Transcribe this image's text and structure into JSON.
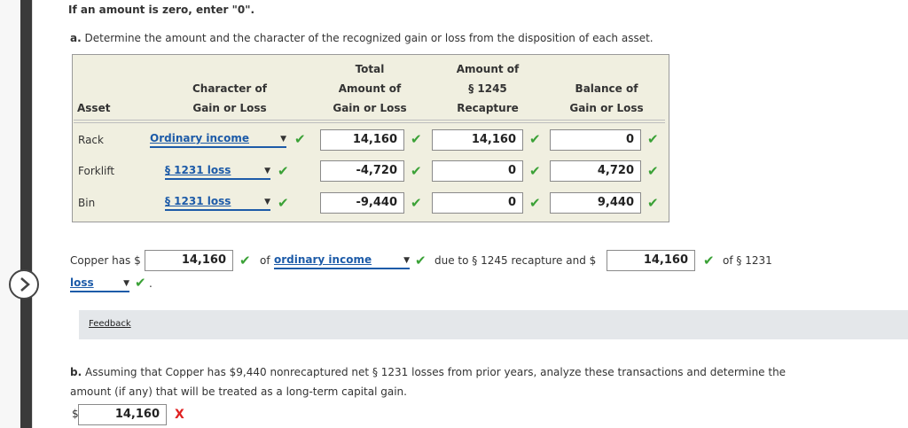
{
  "instruction": "If an amount is zero, enter \"0\".",
  "part_a": {
    "prefix": "a.",
    "text": "Determine the amount and the character of the recognized gain or loss from the disposition of each asset."
  },
  "table": {
    "headers": {
      "asset": "Asset",
      "character_l1": "Character of",
      "character_l2": "Gain or Loss",
      "total_l1": "Total",
      "total_l2": "Amount of",
      "total_l3": "Gain or Loss",
      "recapture_l1": "Amount of",
      "recapture_l2": "§ 1245",
      "recapture_l3": "Recapture",
      "balance_l1": "Balance of",
      "balance_l2": "Gain or Loss"
    },
    "rows": [
      {
        "asset": "Rack",
        "character": "Ordinary income",
        "total": "14,160",
        "recapture": "14,160",
        "balance": "0"
      },
      {
        "asset": "Forklift",
        "character": "§ 1231 loss",
        "total": "-4,720",
        "recapture": "0",
        "balance": "4,720"
      },
      {
        "asset": "Bin",
        "character": "§ 1231 loss",
        "total": "-9,440",
        "recapture": "0",
        "balance": "9,440"
      }
    ]
  },
  "summary": {
    "prefix": "Copper has $",
    "amount1": "14,160",
    "of_text": "of",
    "character_select": "ordinary income",
    "due_text": "due to § 1245 recapture and $",
    "amount2": "14,160",
    "of_1231": "of § 1231",
    "loss_select": "loss",
    "period": "."
  },
  "feedback_label": "Feedback",
  "part_b": {
    "prefix": "b.",
    "text_line1": "Assuming that Copper has $9,440 nonrecaptured net § 1231 losses from prior years, analyze these transactions and determine the",
    "text_line2": "amount (if any) that will be treated as a long-term capital gain.",
    "dollar": "$",
    "answer": "14,160"
  },
  "marks": {
    "correct": "✔",
    "incorrect": "X"
  },
  "colors": {
    "link": "#1d5ba8",
    "correct": "#3aa136",
    "incorrect": "#e02222",
    "table_bg": "#f0efe0"
  }
}
